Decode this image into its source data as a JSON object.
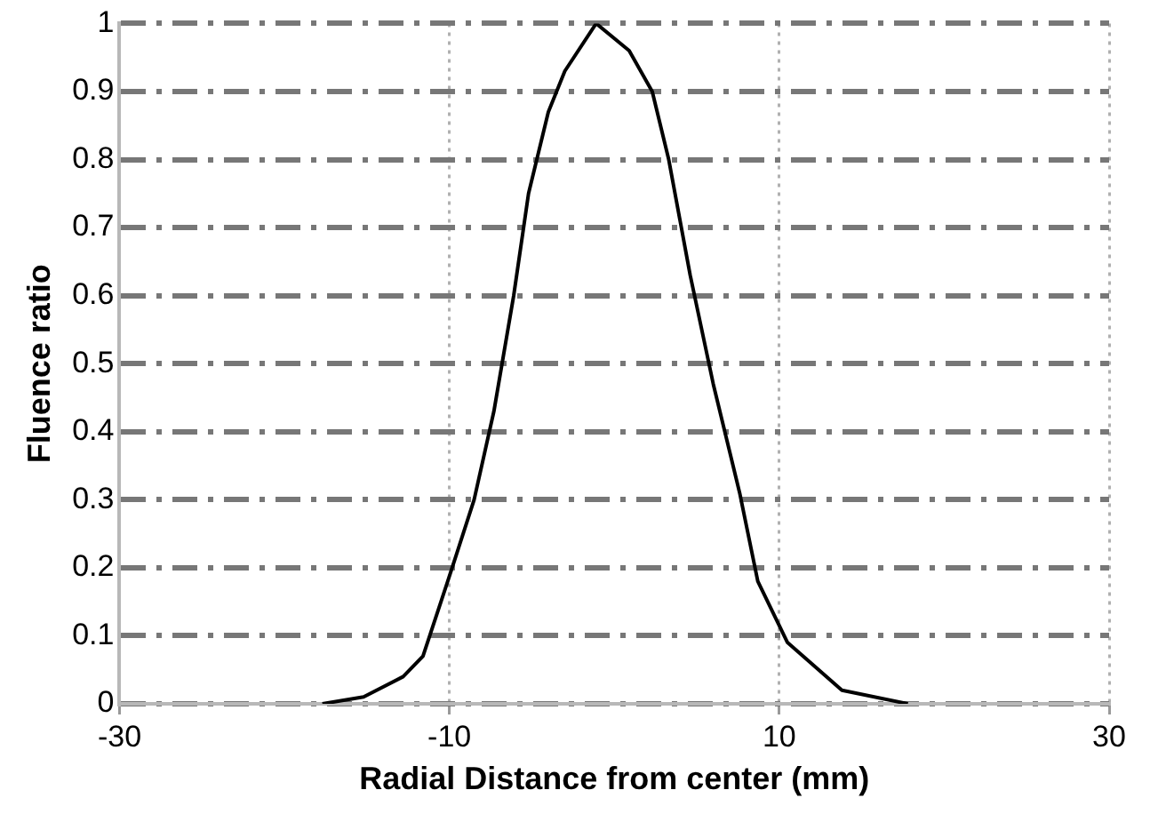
{
  "chart_data": {
    "type": "line",
    "xlabel": "Radial Distance from center (mm)",
    "ylabel": "Fluence ratio",
    "x": [
      -17.7,
      -15.2,
      -12.8,
      -11.6,
      -10.1,
      -8.5,
      -7.3,
      -6.1,
      -5.2,
      -4.0,
      -3.0,
      -1.1,
      0.9,
      2.3,
      3.3,
      4.6,
      6.0,
      7.6,
      8.7,
      10.5,
      13.8,
      17.8
    ],
    "series": [
      {
        "color": "#000000",
        "values": [
          0,
          0.01,
          0.04,
          0.07,
          0.18,
          0.3,
          0.43,
          0.6,
          0.75,
          0.87,
          0.93,
          1,
          0.96,
          0.9,
          0.8,
          0.63,
          0.47,
          0.31,
          0.18,
          0.09,
          0.02,
          0
        ]
      }
    ],
    "xlim": [
      -30,
      30
    ],
    "xticks": [
      -30,
      -10,
      10,
      30
    ],
    "ylim": [
      0,
      1
    ],
    "yticks": [
      0,
      0.1,
      0.2,
      0.3,
      0.4,
      0.5,
      0.6,
      0.7,
      0.8,
      0.9,
      1
    ],
    "grid": true,
    "legend": false,
    "marker": "none",
    "line_style": "solid"
  }
}
